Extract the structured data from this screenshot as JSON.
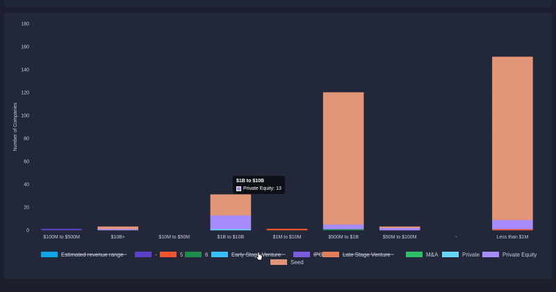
{
  "chart_data": {
    "type": "bar",
    "stacked": true,
    "ylabel": "Number of Companies",
    "ylim": [
      0,
      180
    ],
    "yticks": [
      0,
      20,
      40,
      60,
      80,
      100,
      120,
      140,
      160,
      180
    ],
    "grid": true,
    "categories": [
      "$100M to $500M",
      "$10B+",
      "$10M to $50M",
      "$1B to $10B",
      "$1M to $10M",
      "$500M to $1B",
      "$50M to $100M",
      "-",
      "Less than $1M"
    ],
    "series": [
      {
        "name": "Estimated revenue range",
        "color": "#0ea5e9",
        "hidden": true,
        "values": [
          0,
          0,
          0,
          0,
          0,
          0,
          0,
          0,
          0
        ]
      },
      {
        "name": "-",
        "color": "#5b3fc4",
        "hidden": false,
        "values": [
          1,
          0,
          0,
          0,
          0,
          0,
          0,
          0,
          0
        ]
      },
      {
        "name": "5",
        "color": "#f0552d",
        "hidden": false,
        "values": [
          0,
          0,
          0,
          0,
          1,
          0,
          0,
          0,
          1
        ]
      },
      {
        "name": "6",
        "color": "#1f8a4c",
        "hidden": false,
        "values": [
          0,
          0,
          0,
          0,
          0,
          1,
          0,
          0,
          0
        ]
      },
      {
        "name": "Early Stage Venture",
        "color": "#38bdf8",
        "hidden": true,
        "values": [
          0,
          0,
          0,
          0,
          0,
          0,
          0,
          0,
          0
        ]
      },
      {
        "name": "IPO",
        "color": "#7c5cdb",
        "hidden": true,
        "values": [
          0,
          0,
          0,
          0,
          0,
          0,
          0,
          0,
          0
        ]
      },
      {
        "name": "Late Stage Venture",
        "color": "#e07c5a",
        "hidden": true,
        "values": [
          0,
          0,
          0,
          0,
          0,
          0,
          0,
          0,
          0
        ]
      },
      {
        "name": "M&A",
        "color": "#2fbf6b",
        "hidden": false,
        "values": [
          0,
          0,
          0,
          0,
          0,
          0,
          0,
          0,
          0
        ]
      },
      {
        "name": "Private",
        "color": "#67d4f8",
        "hidden": false,
        "values": [
          0,
          0,
          0,
          1,
          0,
          0,
          0,
          0,
          0
        ]
      },
      {
        "name": "Private Equity",
        "color": "#a78bfa",
        "hidden": false,
        "values": [
          0,
          1,
          0,
          12,
          0,
          4,
          2,
          0,
          8
        ]
      },
      {
        "name": "Seed",
        "color": "#e39577",
        "hidden": false,
        "values": [
          0,
          2,
          0,
          18,
          0,
          115,
          1,
          0,
          142
        ]
      }
    ]
  },
  "tooltip": {
    "title": "$1B to $10B",
    "label": "Private Equity: 13"
  }
}
